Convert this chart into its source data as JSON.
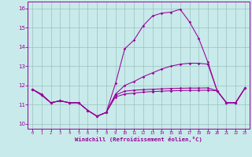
{
  "background_color": "#c8eaea",
  "grid_color": "#9bbfbf",
  "line_color": "#990099",
  "xlabel": "Windchill (Refroidissement éolien,°C)",
  "xlim_min": -0.5,
  "xlim_max": 23.5,
  "ylim_min": 9.75,
  "ylim_max": 16.35,
  "yticks": [
    10,
    11,
    12,
    13,
    14,
    15,
    16
  ],
  "xticks": [
    0,
    1,
    2,
    3,
    4,
    5,
    6,
    7,
    8,
    9,
    10,
    11,
    12,
    13,
    14,
    15,
    16,
    17,
    18,
    19,
    20,
    21,
    22,
    23
  ],
  "series_flat_low": [
    11.8,
    11.5,
    11.1,
    11.2,
    11.1,
    11.1,
    10.7,
    10.4,
    10.6,
    11.4,
    11.55,
    11.6,
    11.65,
    11.68,
    11.7,
    11.72,
    11.73,
    11.74,
    11.74,
    11.75,
    11.72,
    11.1,
    11.1,
    11.85
  ],
  "series_flat_mid": [
    11.8,
    11.5,
    11.1,
    11.2,
    11.1,
    11.1,
    10.7,
    10.4,
    10.6,
    11.5,
    11.7,
    11.75,
    11.78,
    11.8,
    11.82,
    11.84,
    11.85,
    11.86,
    11.86,
    11.87,
    11.72,
    11.1,
    11.1,
    11.85
  ],
  "series_rising": [
    11.8,
    11.55,
    11.1,
    11.2,
    11.1,
    11.1,
    10.7,
    10.4,
    10.6,
    11.55,
    12.0,
    12.2,
    12.45,
    12.65,
    12.85,
    13.0,
    13.1,
    13.15,
    13.15,
    13.1,
    11.72,
    11.1,
    11.1,
    11.85
  ],
  "series_peak": [
    11.8,
    11.5,
    11.1,
    11.2,
    11.1,
    11.1,
    10.7,
    10.4,
    10.6,
    12.1,
    13.9,
    14.35,
    15.1,
    15.6,
    15.75,
    15.8,
    15.95,
    15.3,
    14.45,
    13.2,
    11.72,
    11.1,
    11.1,
    11.85
  ]
}
